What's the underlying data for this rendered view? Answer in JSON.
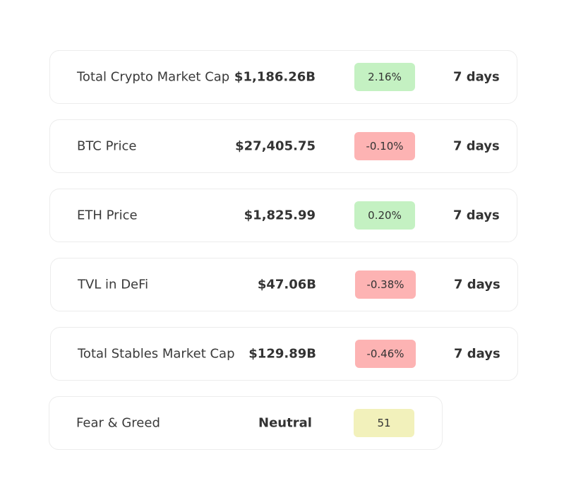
{
  "metrics": [
    {
      "label": "Total Crypto Market Cap",
      "value": "$1,186.26B",
      "change": "2.16%",
      "trend": "positive",
      "period": "7 days"
    },
    {
      "label": "BTC Price",
      "value": "$27,405.75",
      "change": "-0.10%",
      "trend": "negative",
      "period": "7 days"
    },
    {
      "label": "ETH Price",
      "value": "$1,825.99",
      "change": "0.20%",
      "trend": "positive",
      "period": "7 days"
    },
    {
      "label": "TVL in DeFi",
      "value": "$47.06B",
      "change": "-0.38%",
      "trend": "negative",
      "period": "7 days"
    },
    {
      "label": "Total Stables Market Cap",
      "value": "$129.89B",
      "change": "-0.46%",
      "trend": "negative",
      "period": "7 days"
    }
  ],
  "fear_greed": {
    "label": "Fear & Greed",
    "value": "Neutral",
    "score": "51"
  },
  "colors": {
    "positive_badge": "#c4f1c2",
    "negative_badge": "#fdb3b3",
    "neutral_badge": "#f2f1bb",
    "card_border": "#ececec"
  }
}
